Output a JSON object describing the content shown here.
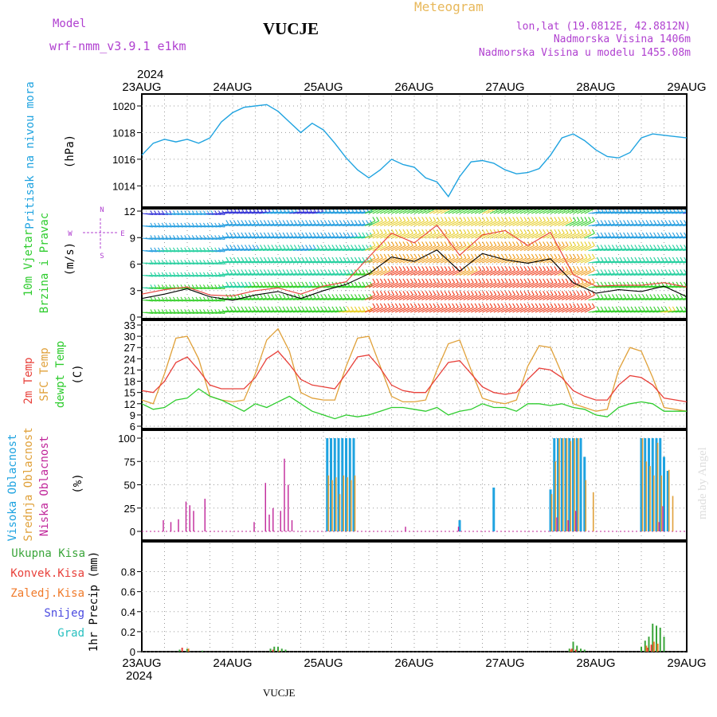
{
  "header": {
    "model_label": "Model",
    "model_name": "wrf-nmm_v3.9.1  e1km",
    "station": "VUCJE",
    "product": "Meteogram",
    "coords": "lon,lat (19.0812E, 42.8812N)",
    "elevation": "Nadmorska Visina 1406m",
    "model_elevation": "Nadmorska Visina u modelu 1455.08m",
    "footer_station": "VUCJE",
    "watermark": "made by Angel"
  },
  "time_axis": {
    "year": "2024",
    "labels": [
      "23AUG",
      "24AUG",
      "25AUG",
      "26AUG",
      "27AUG",
      "28AUG",
      "29AUG"
    ]
  },
  "colors": {
    "pressure": "#1fa3e0",
    "temp2m": "#e8403a",
    "sfc_temp": "#e0a13a",
    "dewpt": "#2ecc2e",
    "high_cloud": "#1fa3e0",
    "mid_cloud": "#e0a13a",
    "low_cloud": "#c0269a",
    "total_precip": "#3aa53a",
    "conv_precip": "#e8403a",
    "strat_precip": "#f07a2a",
    "snow": "#4a4ae0",
    "graupel": "#28c0c0",
    "header_purple": "#b040d0",
    "header_orange": "#e8b85a"
  },
  "chart_data": [
    {
      "type": "line",
      "panel": "pressure",
      "ylabel": [
        "Pritisak na nivou mora",
        "(hPa)"
      ],
      "ylim": [
        1012.6,
        1020.8
      ],
      "yticks": [
        "1014",
        "1016",
        "1018",
        "1020"
      ],
      "x_unit": "hours since 23AUG 00UTC",
      "series": [
        {
          "x": [
            0,
            3,
            6,
            9,
            12,
            15,
            18,
            21,
            24,
            27,
            30,
            33,
            36,
            39,
            42,
            45,
            48,
            51,
            54,
            57,
            60,
            63,
            66,
            69,
            72,
            75,
            78,
            81,
            84,
            87,
            90,
            93,
            96,
            99,
            102,
            105,
            108,
            111,
            114,
            117,
            120,
            123,
            126,
            129,
            132,
            135,
            138,
            144
          ],
          "values": [
            1016.3,
            1017.2,
            1017.5,
            1017.3,
            1017.5,
            1017.2,
            1017.6,
            1018.8,
            1019.5,
            1019.9,
            1020.0,
            1020.1,
            1019.6,
            1018.8,
            1018.0,
            1018.7,
            1018.2,
            1017.2,
            1016.1,
            1015.2,
            1014.6,
            1015.2,
            1016.0,
            1015.6,
            1015.4,
            1014.6,
            1014.3,
            1013.2,
            1014.7,
            1015.8,
            1015.9,
            1015.7,
            1015.2,
            1014.9,
            1015.0,
            1015.3,
            1016.3,
            1017.6,
            1017.9,
            1017.4,
            1016.7,
            1016.2,
            1016.1,
            1016.5,
            1017.6,
            1017.9,
            1017.8,
            1017.6
          ]
        }
      ]
    },
    {
      "type": "line",
      "panel": "wind",
      "ylabel": [
        "10m Vjetar",
        "Brzina i Pravac",
        "(m/s)"
      ],
      "compass": [
        "N",
        "W",
        "E",
        "S"
      ],
      "ylim": [
        0,
        12
      ],
      "yticks": [
        "0",
        "3",
        "6",
        "9",
        "12"
      ],
      "series": [
        {
          "name": "speed",
          "x": [
            0,
            6,
            12,
            18,
            24,
            30,
            36,
            42,
            48,
            54,
            60,
            66,
            72,
            78,
            84,
            90,
            96,
            102,
            108,
            114,
            120,
            126,
            132,
            138,
            144
          ],
          "values": [
            2.1,
            2.6,
            3.2,
            2.3,
            1.9,
            2.5,
            2.9,
            2.1,
            3.0,
            3.7,
            4.9,
            6.8,
            6.3,
            7.6,
            5.2,
            7.2,
            6.5,
            6.1,
            6.6,
            3.9,
            2.7,
            3.1,
            2.9,
            3.5,
            2.3
          ]
        },
        {
          "name": "gust",
          "x": [
            0,
            6,
            12,
            18,
            24,
            30,
            36,
            42,
            48,
            54,
            60,
            66,
            72,
            78,
            84,
            90,
            96,
            102,
            108,
            114,
            120,
            126,
            132,
            138,
            144
          ],
          "values": [
            2.6,
            3.1,
            3.4,
            2.5,
            2.4,
            3.0,
            3.3,
            2.6,
            3.5,
            4.0,
            6.8,
            9.5,
            8.4,
            10.4,
            7.0,
            9.3,
            9.8,
            8.1,
            9.6,
            4.8,
            3.5,
            3.6,
            3.6,
            3.9,
            3.4
          ]
        }
      ]
    },
    {
      "type": "line",
      "panel": "temperature",
      "ylabel": [
        "2m Temp",
        "SFC Temp",
        "dewpt Temp",
        "(C)"
      ],
      "ylim": [
        6,
        33
      ],
      "yticks": [
        "6",
        "9",
        "12",
        "15",
        "18",
        "21",
        "24",
        "27",
        "30",
        "33"
      ],
      "series": [
        {
          "name": "2m Temp",
          "x": [
            0,
            3,
            6,
            9,
            12,
            15,
            18,
            21,
            24,
            27,
            30,
            33,
            36,
            39,
            42,
            45,
            48,
            51,
            54,
            57,
            60,
            63,
            66,
            69,
            72,
            75,
            78,
            81,
            84,
            87,
            90,
            93,
            96,
            99,
            102,
            105,
            108,
            111,
            114,
            117,
            120,
            123,
            126,
            129,
            132,
            135,
            138,
            144
          ],
          "values": [
            15.5,
            15,
            18,
            23,
            24.5,
            21,
            17,
            16,
            16,
            16,
            19,
            24,
            26,
            22.5,
            18.5,
            17,
            16.5,
            16,
            20,
            24.5,
            25,
            21.5,
            17,
            15.5,
            15,
            15,
            19,
            23,
            23.5,
            20,
            16.5,
            15,
            14.5,
            15,
            18.5,
            21.5,
            21,
            19,
            15.5,
            14,
            13,
            13,
            17,
            19.5,
            19,
            17,
            13.5,
            12.5
          ]
        },
        {
          "name": "SFC Temp",
          "x": [
            0,
            3,
            6,
            9,
            12,
            15,
            18,
            21,
            24,
            27,
            30,
            33,
            36,
            39,
            42,
            45,
            48,
            51,
            54,
            57,
            60,
            63,
            66,
            69,
            72,
            75,
            78,
            81,
            84,
            87,
            90,
            93,
            96,
            99,
            102,
            105,
            108,
            111,
            114,
            117,
            120,
            123,
            126,
            129,
            132,
            135,
            138,
            144
          ],
          "values": [
            13,
            12,
            20,
            29.5,
            30,
            24,
            14,
            13,
            12.5,
            13,
            20,
            29,
            32,
            26,
            15,
            13.5,
            13,
            13,
            22,
            29.5,
            30,
            22,
            14,
            12.5,
            12.5,
            13,
            21,
            28,
            29,
            21,
            13.5,
            12.5,
            12,
            13,
            22,
            27.5,
            27,
            20,
            12,
            11,
            10,
            10.5,
            21,
            27,
            26,
            19,
            11,
            10
          ]
        },
        {
          "name": "dewpt Temp",
          "x": [
            0,
            3,
            6,
            9,
            12,
            15,
            18,
            21,
            24,
            27,
            30,
            33,
            36,
            39,
            42,
            45,
            48,
            51,
            54,
            57,
            60,
            63,
            66,
            69,
            72,
            75,
            78,
            81,
            84,
            87,
            90,
            93,
            96,
            99,
            102,
            105,
            108,
            111,
            114,
            117,
            120,
            123,
            126,
            129,
            132,
            135,
            138,
            144
          ],
          "values": [
            12,
            10.5,
            11,
            13,
            13.5,
            16,
            14,
            13,
            11.5,
            10,
            12,
            11,
            12.5,
            14,
            12,
            10,
            9,
            8,
            9,
            8.5,
            9,
            10,
            11,
            11,
            10.5,
            10,
            11,
            9,
            10,
            10.5,
            12,
            11,
            11,
            10,
            12,
            12,
            11.5,
            12,
            11,
            10.5,
            9,
            8.5,
            11,
            12,
            12.5,
            12,
            10,
            10
          ]
        }
      ]
    },
    {
      "type": "bar",
      "panel": "cloud",
      "ylabel": [
        "Visoka Oblacnost",
        "Srednja Oblacnost",
        "Niska Oblacnost",
        "(%)"
      ],
      "ylim": [
        0,
        100
      ],
      "yticks": [
        "0",
        "25",
        "50",
        "75",
        "100"
      ],
      "series": [
        {
          "name": "Visoka Oblacnost",
          "x": [
            49,
            50,
            51,
            52,
            53,
            54,
            55,
            56,
            58,
            84,
            93,
            108,
            109,
            110,
            111,
            112,
            113,
            114,
            115,
            116,
            117,
            132,
            133,
            134,
            135,
            136,
            137,
            138,
            139
          ],
          "values": [
            100,
            100,
            100,
            100,
            100,
            100,
            100,
            100,
            0,
            12,
            47,
            45,
            100,
            100,
            100,
            100,
            100,
            100,
            100,
            100,
            80,
            100,
            100,
            100,
            100,
            100,
            100,
            80,
            65
          ]
        },
        {
          "name": "Srednja Oblacnost",
          "x": [
            49,
            50,
            51,
            52,
            53,
            54,
            55,
            56,
            108,
            109,
            110,
            111,
            112,
            113,
            114,
            115,
            117,
            119,
            132,
            133,
            134,
            135,
            136,
            137,
            139,
            140
          ],
          "values": [
            60,
            55,
            58,
            40,
            60,
            58,
            55,
            60,
            40,
            75,
            100,
            100,
            100,
            97,
            100,
            100,
            55,
            42,
            100,
            75,
            70,
            60,
            95,
            60,
            66,
            38
          ]
        },
        {
          "name": "Niska Oblacnost",
          "x": [
            6,
            8,
            10,
            12,
            13,
            14,
            17,
            30,
            33,
            34,
            35,
            37,
            38,
            39,
            40,
            70,
            84,
            110,
            113,
            115,
            137,
            138
          ],
          "values": [
            12,
            10,
            13,
            32,
            28,
            22,
            35,
            10,
            52,
            18,
            25,
            22,
            78,
            50,
            12,
            5,
            5,
            15,
            12,
            22,
            10,
            27
          ]
        }
      ]
    },
    {
      "type": "bar",
      "panel": "precip",
      "ylabel": [
        "1hr Precip (mm)"
      ],
      "legend": [
        "Ukupna Kisa",
        "Konvek.Kisa",
        "Zaledj.Kisa",
        "Snijeg",
        "Grad"
      ],
      "ylim": [
        0,
        1.0
      ],
      "yticks": [
        "0",
        "0.2",
        "0.4",
        "0.6",
        "0.8"
      ],
      "series": [
        {
          "name": "Ukupna Kisa",
          "x": [
            10,
            12,
            16,
            34,
            35,
            36,
            37,
            38,
            113,
            114,
            115,
            116,
            117,
            132,
            133,
            134,
            135,
            136,
            137,
            138
          ],
          "values": [
            0.02,
            0.03,
            0.01,
            0.03,
            0.05,
            0.05,
            0.03,
            0.02,
            0.03,
            0.1,
            0.06,
            0.03,
            0.02,
            0.05,
            0.11,
            0.15,
            0.28,
            0.26,
            0.24,
            0.15
          ]
        },
        {
          "name": "Konvek.Kisa",
          "x": [
            11,
            35,
            114,
            115,
            134,
            135
          ],
          "values": [
            0.04,
            0.02,
            0.03,
            0.02,
            0.04,
            0.07
          ]
        },
        {
          "name": "Zaledj.Kisa",
          "x": [
            12,
            36,
            113,
            133,
            135,
            136
          ],
          "values": [
            0.03,
            0.01,
            0.02,
            0.06,
            0.1,
            0.08
          ]
        }
      ]
    }
  ]
}
